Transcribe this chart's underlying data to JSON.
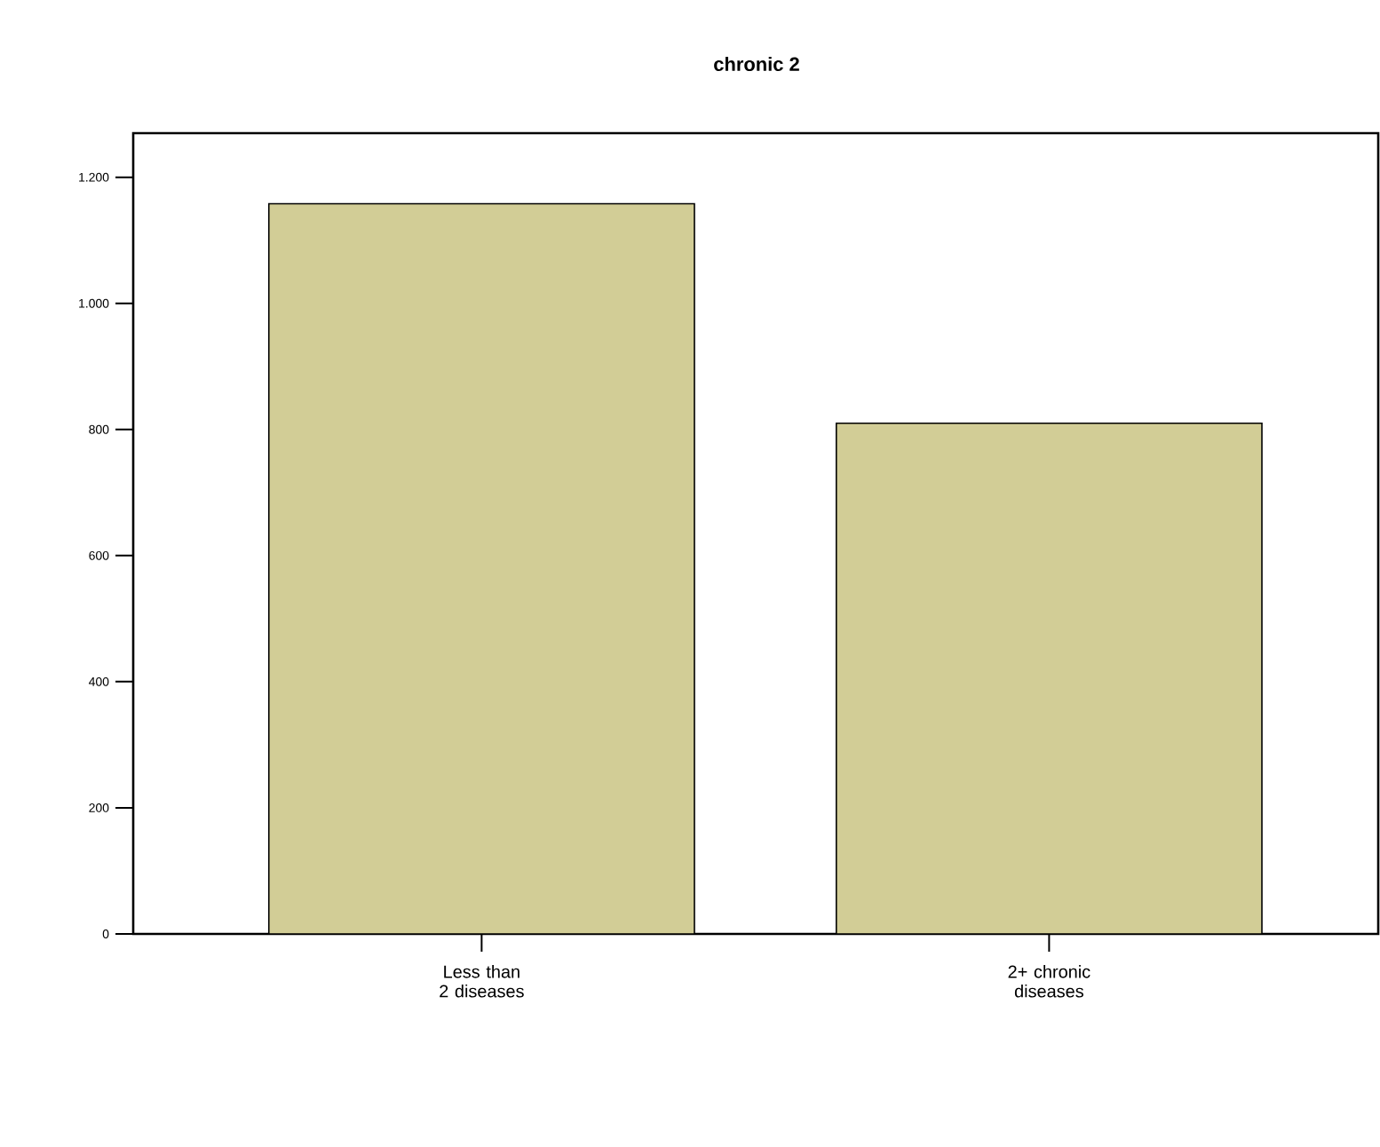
{
  "chart_data": {
    "type": "bar",
    "title": "chronic 2",
    "categories": [
      "Less than 2 diseases",
      "2+ chronic diseases"
    ],
    "values": [
      1158,
      810
    ],
    "color": "#d2cd96",
    "ylim": [
      0,
      1270
    ],
    "yticks": [
      0,
      200,
      400,
      600,
      800,
      {
        "value": 1000,
        "label": "1.000"
      },
      {
        "value": 1200,
        "label": "1.200"
      }
    ],
    "grid": false
  }
}
